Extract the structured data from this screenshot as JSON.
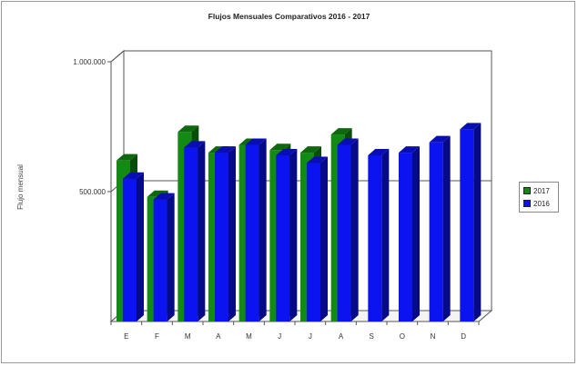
{
  "chart_data": {
    "type": "bar",
    "title": "Flujos Mensuales Comparativos 2016 - 2017",
    "ylabel": "Flujo mensual",
    "xlabel": "",
    "categories": [
      "E",
      "F",
      "M",
      "A",
      "M",
      "J",
      "J",
      "A",
      "S",
      "O",
      "N",
      "D"
    ],
    "yticks": [
      "1.000.000",
      "500.000"
    ],
    "ytick_values": [
      1000000,
      500000
    ],
    "ylim": [
      0,
      1000000
    ],
    "series": [
      {
        "name": "2017",
        "color": "#138a13",
        "values": [
          620000,
          480000,
          730000,
          650000,
          680000,
          660000,
          650000,
          720000,
          null,
          null,
          null,
          null
        ]
      },
      {
        "name": "2016",
        "color": "#0a13f0",
        "values": [
          550000,
          470000,
          670000,
          650000,
          680000,
          640000,
          610000,
          680000,
          640000,
          650000,
          690000,
          740000
        ]
      }
    ],
    "legend_position": "right",
    "grid": true
  }
}
